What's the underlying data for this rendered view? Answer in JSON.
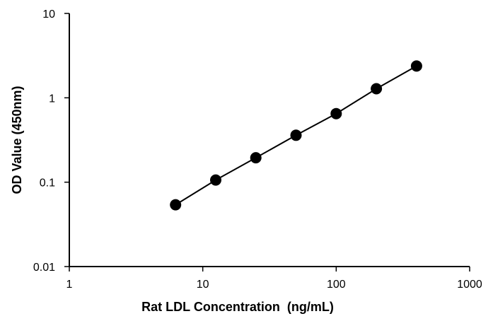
{
  "chart_data": {
    "type": "scatter",
    "title": "",
    "xlabel": "Rat LDL Concentration  (ng/mL)",
    "ylabel": "OD Value (450nm)",
    "xscale": "log",
    "yscale": "log",
    "xlim": [
      1,
      1000
    ],
    "ylim": [
      0.01,
      10
    ],
    "x_ticks": [
      1,
      10,
      100,
      1000
    ],
    "x_tick_labels": [
      "1",
      "10",
      "100",
      "1000"
    ],
    "y_ticks": [
      0.01,
      0.1,
      1,
      10
    ],
    "y_tick_labels": [
      "0.01",
      "0.1",
      "1",
      "10"
    ],
    "grid": false,
    "legend": "none",
    "line_connects_points": true,
    "marker_color": "#000000",
    "series": [
      {
        "x": [
          6.25,
          12.5,
          25,
          50,
          100,
          200,
          400
        ],
        "y": [
          0.054,
          0.106,
          0.195,
          0.36,
          0.65,
          1.28,
          2.38
        ]
      }
    ]
  }
}
